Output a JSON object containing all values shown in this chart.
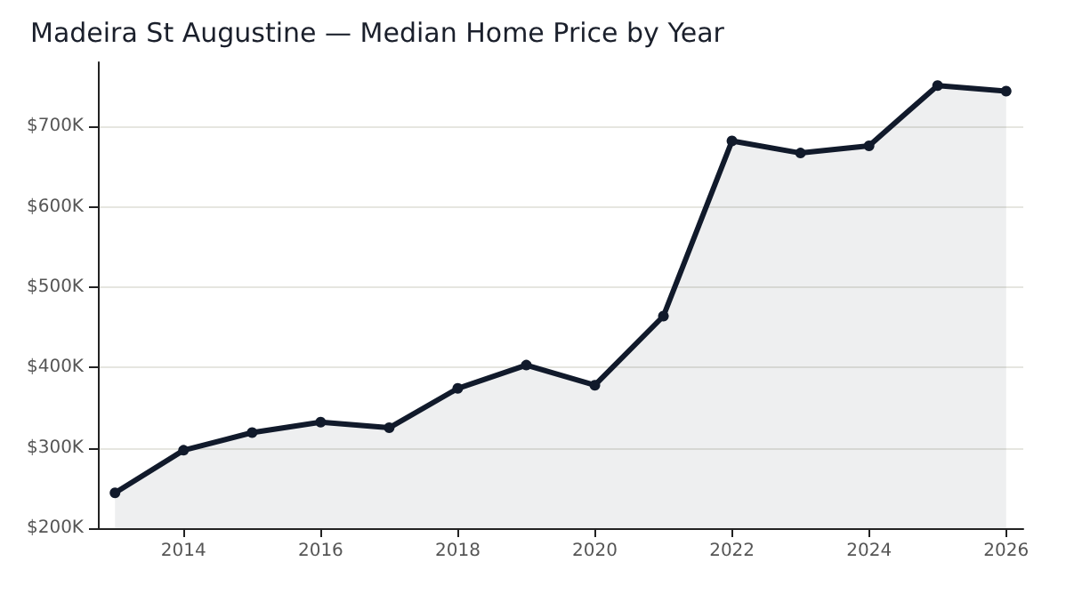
{
  "chart_data": {
    "type": "area",
    "title": "Madeira St Augustine — Median Home Price by Year",
    "x": [
      2013,
      2014,
      2015,
      2016,
      2017,
      2018,
      2019,
      2020,
      2021,
      2022,
      2023,
      2024,
      2025,
      2026
    ],
    "series": [
      {
        "color": "#111a2b",
        "values": [
          244000,
          297000,
          319000,
          332000,
          325000,
          374000,
          403000,
          378000,
          464000,
          682000,
          667000,
          676000,
          751000,
          744000
        ]
      }
    ],
    "xlim": [
      2012.75,
      2026.25
    ],
    "xticks": [
      2014,
      2016,
      2018,
      2020,
      2022,
      2024,
      2026
    ],
    "ylim": [
      200000,
      780000
    ],
    "yticks": [
      {
        "value": 200000,
        "label": "$200K"
      },
      {
        "value": 300000,
        "label": "$300K"
      },
      {
        "value": 400000,
        "label": "$400K"
      },
      {
        "value": 500000,
        "label": "$500K"
      },
      {
        "value": 600000,
        "label": "$600K"
      },
      {
        "value": 700000,
        "label": "$700K"
      }
    ],
    "grid": "y",
    "marker": "circle",
    "line_style": "solid"
  }
}
